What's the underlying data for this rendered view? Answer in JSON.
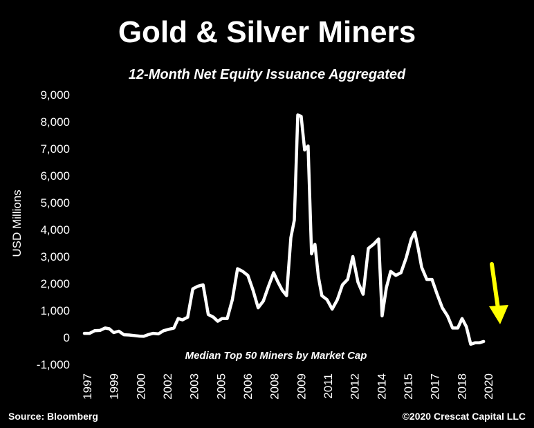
{
  "colors": {
    "background": "#000000",
    "text": "#ffffff",
    "series_line": "#ffffff",
    "arrow": "#ffff00"
  },
  "source": "Source: Bloomberg",
  "copyright": "©2020 Crescat Capital LLC",
  "chart_data": {
    "type": "line",
    "title": "Gold & Silver Miners",
    "subtitle": "12-Month Net Equity Issuance Aggregated",
    "ylabel": "USD Millions",
    "xlabel": "",
    "annotation": "Median Top 50 Miners by Market Cap",
    "ylim": [
      -1000,
      9000
    ],
    "xlim": [
      1997,
      2021.2
    ],
    "yticks": [
      -1000,
      0,
      1000,
      2000,
      3000,
      4000,
      5000,
      6000,
      7000,
      8000,
      9000
    ],
    "ytick_labels": [
      "-1,000",
      "0",
      "1,000",
      "2,000",
      "3,000",
      "4,000",
      "5,000",
      "6,000",
      "7,000",
      "8,000",
      "9,000"
    ],
    "xtick_labels": [
      "1997",
      "1999",
      "2000",
      "2002",
      "2003",
      "2005",
      "2006",
      "2008",
      "2009",
      "2011",
      "2012",
      "2014",
      "2015",
      "2017",
      "2018",
      "2020"
    ],
    "grid": false,
    "legend": "none",
    "series": [
      {
        "x": [
          1997.0,
          1997.3,
          1997.6,
          1997.9,
          1998.2,
          1998.45,
          1998.7,
          1999.0,
          1999.3,
          1999.6,
          1999.9,
          2000.2,
          2000.45,
          2000.7,
          2001.0,
          2001.3,
          2001.6,
          2001.9,
          2002.2,
          2002.45,
          2002.7,
          2003.0,
          2003.3,
          2003.6,
          2003.9,
          2004.2,
          2004.5,
          2004.75,
          2005.0,
          2005.3,
          2005.6,
          2005.9,
          2006.2,
          2006.5,
          2006.8,
          2007.1,
          2007.4,
          2007.7,
          2008.0,
          2008.25,
          2008.5,
          2008.75,
          2009.0,
          2009.2,
          2009.4,
          2009.6,
          2009.8,
          2010.0,
          2010.2,
          2010.4,
          2010.6,
          2010.8,
          2011.1,
          2011.4,
          2011.7,
          2012.0,
          2012.3,
          2012.6,
          2012.9,
          2013.2,
          2013.5,
          2013.8,
          2014.1,
          2014.3,
          2014.55,
          2014.8,
          2015.1,
          2015.4,
          2015.7,
          2016.0,
          2016.2,
          2016.4,
          2016.6,
          2016.9,
          2017.2,
          2017.5,
          2017.8,
          2018.1,
          2018.4,
          2018.7,
          2018.95,
          2019.2,
          2019.45,
          2019.7,
          2019.95,
          2020.2
        ],
        "values": [
          150,
          150,
          250,
          260,
          350,
          320,
          180,
          230,
          100,
          90,
          70,
          50,
          40,
          100,
          150,
          130,
          250,
          300,
          350,
          700,
          650,
          750,
          1800,
          1900,
          1950,
          850,
          750,
          600,
          700,
          700,
          1400,
          2550,
          2450,
          2300,
          1750,
          1100,
          1350,
          1900,
          2400,
          2050,
          1750,
          1550,
          3700,
          4350,
          8250,
          8200,
          6950,
          7100,
          3100,
          3450,
          2250,
          1550,
          1400,
          1050,
          1400,
          1950,
          2150,
          3000,
          2050,
          1600,
          3300,
          3450,
          3650,
          800,
          1850,
          2450,
          2300,
          2400,
          2950,
          3650,
          3900,
          3300,
          2600,
          2150,
          2150,
          1600,
          1100,
          800,
          350,
          350,
          700,
          400,
          -250,
          -200,
          -200,
          -150
        ]
      }
    ]
  }
}
